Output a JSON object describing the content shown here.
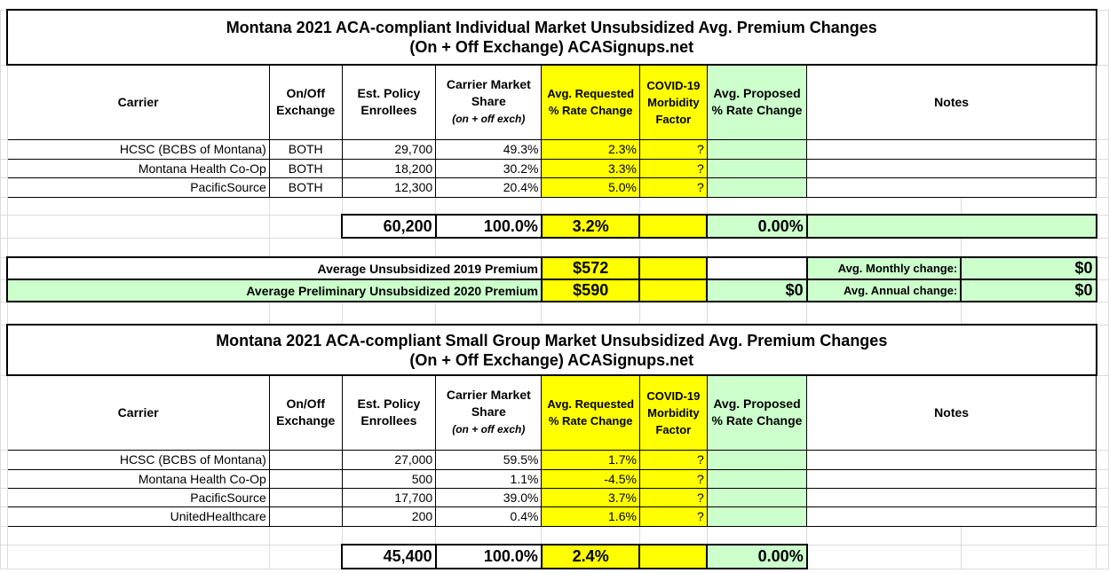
{
  "colors": {
    "requested": "#ffff00",
    "proposed": "#ccffcc"
  },
  "individual": {
    "title_line1": "Montana 2021 ACA-compliant Individual Market Unsubsidized Avg. Premium Changes",
    "title_line2": "(On + Off Exchange) ACASignups.net",
    "headers": {
      "carrier": "Carrier",
      "exchange": "On/Off Exchange",
      "enrollees": "Est. Policy Enrollees",
      "share": "Carrier Market Share",
      "share_note": "(on + off exch)",
      "requested": "Avg. Requested % Rate Change",
      "covid": "COVID-19 Morbidity Factor",
      "proposed": "Avg. Proposed % Rate Change",
      "notes": "Notes"
    },
    "rows": [
      {
        "carrier": "HCSC (BCBS of Montana)",
        "exchange": "BOTH",
        "enrollees": "29,700",
        "share": "49.3%",
        "requested": "2.3%",
        "covid": "?"
      },
      {
        "carrier": "Montana Health Co-Op",
        "exchange": "BOTH",
        "enrollees": "18,200",
        "share": "30.2%",
        "requested": "3.3%",
        "covid": "?"
      },
      {
        "carrier": "PacificSource",
        "exchange": "BOTH",
        "enrollees": "12,300",
        "share": "20.4%",
        "requested": "5.0%",
        "covid": "?"
      }
    ],
    "totals": {
      "enrollees": "60,200",
      "share": "100.0%",
      "requested": "3.2%",
      "proposed": "0.00%"
    },
    "avg": {
      "label_2019": "Average Unsubsidized 2019 Premium",
      "value_2019": "$572",
      "label_2020": "Average Preliminary Unsubsidized 2020 Premium",
      "value_2020": "$590",
      "proposed_2020": "$0",
      "monthly_label": "Avg. Monthly change:",
      "monthly_value": "$0",
      "annual_label": "Avg. Annual change:",
      "annual_value": "$0"
    }
  },
  "small_group": {
    "title_line1": "Montana 2021 ACA-compliant Small Group Market Unsubsidized Avg. Premium Changes",
    "title_line2": "(On + Off Exchange) ACASignups.net",
    "headers": {
      "carrier": "Carrier",
      "exchange": "On/Off Exchange",
      "enrollees": "Est. Policy Enrollees",
      "share": "Carrier Market Share",
      "share_note": "(on + off exch)",
      "requested": "Avg. Requested % Rate Change",
      "covid": "COVID-19 Morbidity Factor",
      "proposed": "Avg. Proposed % Rate Change",
      "notes": "Notes"
    },
    "rows": [
      {
        "carrier": "HCSC (BCBS of Montana)",
        "exchange": "",
        "enrollees": "27,000",
        "share": "59.5%",
        "requested": "1.7%",
        "covid": "?"
      },
      {
        "carrier": "Montana Health Co-Op",
        "exchange": "",
        "enrollees": "500",
        "share": "1.1%",
        "requested": "-4.5%",
        "covid": "?"
      },
      {
        "carrier": "PacificSource",
        "exchange": "",
        "enrollees": "17,700",
        "share": "39.0%",
        "requested": "3.7%",
        "covid": "?"
      },
      {
        "carrier": "UnitedHealthcare",
        "exchange": "",
        "enrollees": "200",
        "share": "0.4%",
        "requested": "1.6%",
        "covid": "?"
      }
    ],
    "totals": {
      "enrollees": "45,400",
      "share": "100.0%",
      "requested": "2.4%",
      "proposed": "0.00%"
    }
  }
}
